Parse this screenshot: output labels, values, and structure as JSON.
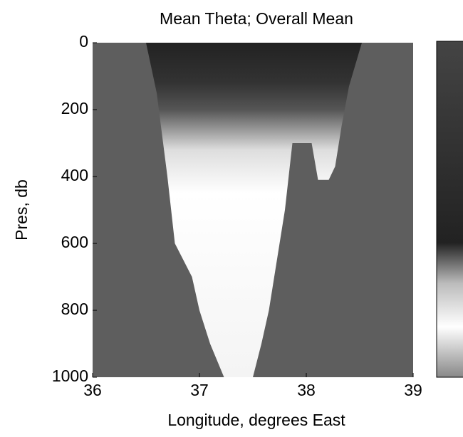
{
  "chart_data": {
    "type": "section",
    "title": "Mean Theta;  Overall Mean",
    "x_label": "Longitude, degrees East",
    "y_label": "Pres, db",
    "xlim": [
      36,
      39
    ],
    "xticks": [
      36,
      37,
      38,
      39
    ],
    "ylim": [
      0,
      1000
    ],
    "yticks": [
      0,
      200,
      400,
      600,
      800,
      1000
    ],
    "y_reversed": true,
    "land_color": "#5e5e5e",
    "left_boundary": {
      "x": [
        36.5,
        36.6,
        36.7,
        36.77,
        36.93,
        37.0,
        37.1,
        37.23
      ],
      "values": [
        0,
        150,
        400,
        600,
        700,
        800,
        900,
        1000
      ]
    },
    "right_boundary": {
      "x": [
        38.52,
        38.4,
        38.33,
        38.27,
        38.21,
        38.11,
        38.05,
        37.87,
        37.8,
        37.7,
        37.65,
        37.58,
        37.5
      ],
      "values": [
        0,
        130,
        250,
        370,
        410,
        410,
        300,
        300,
        500,
        700,
        800,
        900,
        1000
      ]
    }
  }
}
